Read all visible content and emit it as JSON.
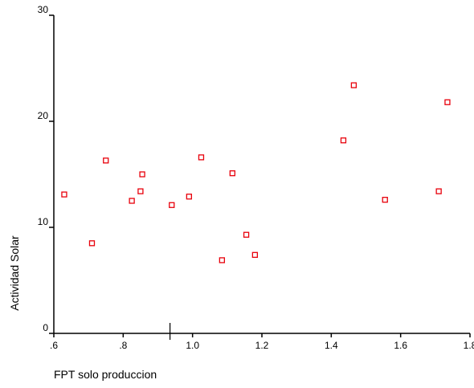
{
  "chart_data": {
    "type": "scatter",
    "title": "",
    "xlabel": "FPT solo produccion",
    "ylabel": "Actividad Solar",
    "xlim": [
      0.6,
      1.8
    ],
    "ylim": [
      0,
      30
    ],
    "x_ticks": [
      0.6,
      0.8,
      1.0,
      1.2,
      1.4,
      1.6,
      1.8
    ],
    "x_tick_labels": [
      ".6",
      ".8",
      "1.0",
      "1.2",
      "1.4",
      "1.6",
      "1.8"
    ],
    "y_ticks": [
      0,
      10,
      20,
      30
    ],
    "y_tick_labels": [
      "0",
      "10",
      "20",
      "30"
    ],
    "grid": false,
    "marker": "hollow-square",
    "marker_color": "#e8000b",
    "x_reference_mark": 0.935,
    "points": [
      {
        "x": 0.63,
        "y": 13.1
      },
      {
        "x": 0.71,
        "y": 8.5
      },
      {
        "x": 0.75,
        "y": 16.3
      },
      {
        "x": 0.825,
        "y": 12.5
      },
      {
        "x": 0.85,
        "y": 13.4
      },
      {
        "x": 0.855,
        "y": 15.0
      },
      {
        "x": 0.94,
        "y": 12.1
      },
      {
        "x": 0.99,
        "y": 12.9
      },
      {
        "x": 1.025,
        "y": 16.6
      },
      {
        "x": 1.085,
        "y": 6.9
      },
      {
        "x": 1.115,
        "y": 15.1
      },
      {
        "x": 1.155,
        "y": 9.3
      },
      {
        "x": 1.18,
        "y": 7.4
      },
      {
        "x": 1.435,
        "y": 18.2
      },
      {
        "x": 1.465,
        "y": 23.4
      },
      {
        "x": 1.555,
        "y": 12.6
      },
      {
        "x": 1.71,
        "y": 13.4
      },
      {
        "x": 1.735,
        "y": 21.8
      }
    ]
  }
}
